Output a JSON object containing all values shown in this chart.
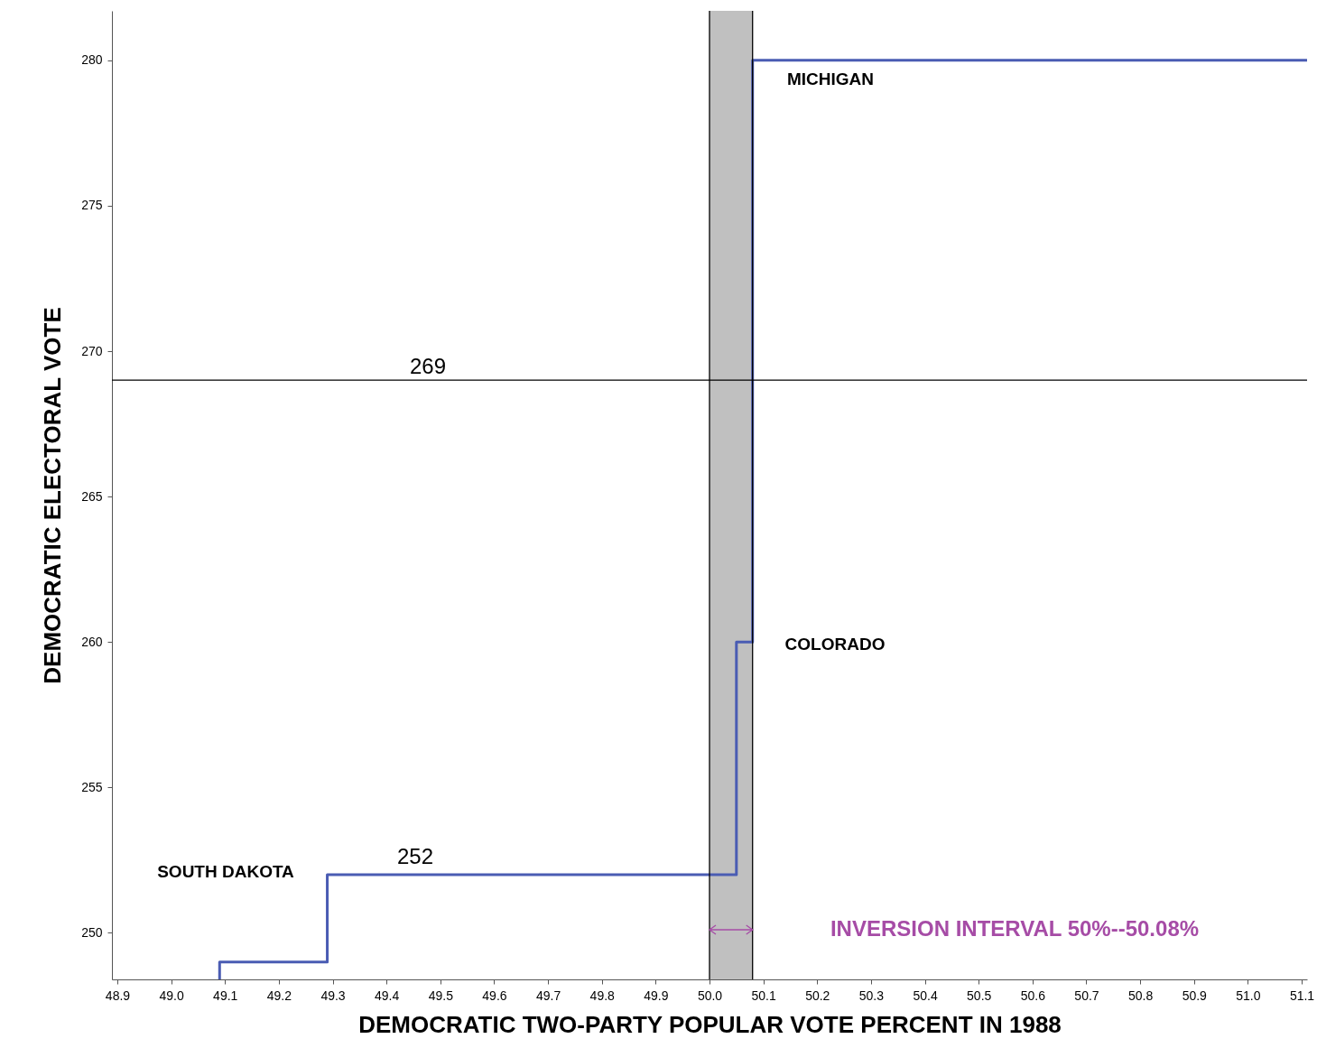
{
  "chart_data": {
    "type": "step",
    "xlabel": "DEMOCRATIC TWO-PARTY POPULAR VOTE PERCENT IN 1988",
    "ylabel": "DEMOCRATIC ELECTORAL VOTE",
    "x": [
      49.09,
      49.09,
      49.29,
      50.05,
      50.08,
      51.11
    ],
    "series": [
      {
        "color": "#4a5cb3",
        "values": [
          248.4,
          249,
          252,
          260,
          280,
          280
        ]
      }
    ],
    "xlim": [
      48.89,
      51.11
    ],
    "ylim": [
      248.4,
      281.7
    ],
    "xticks": [
      48.9,
      {
        "value": 49,
        "label": "49.0"
      },
      49.1,
      49.2,
      49.3,
      49.4,
      49.5,
      49.6,
      49.7,
      49.8,
      49.9,
      {
        "value": 50,
        "label": "50.0"
      },
      50.1,
      50.2,
      50.3,
      50.4,
      50.5,
      50.6,
      50.7,
      50.8,
      50.9,
      {
        "value": 51,
        "label": "51.0"
      },
      51.1
    ],
    "yticks": [
      250,
      255,
      260,
      265,
      270,
      275,
      280
    ],
    "grid": false,
    "line_style": "solid",
    "marker": "none",
    "bands": [
      {
        "axis": "x",
        "from": 50.0,
        "to": 50.08,
        "color": "#c0c0c0"
      }
    ],
    "ref_lines": [
      {
        "axis": "y",
        "value": 269,
        "label": "269",
        "color": "#000000"
      },
      {
        "axis": "x",
        "value": 50.0,
        "color": "#000000"
      },
      {
        "axis": "x",
        "value": 50.08,
        "color": "#000000"
      }
    ],
    "annotations": [
      "MICHIGAN",
      "COLORADO",
      "SOUTH DAKOTA",
      "252",
      "INVERSION INTERVAL 50%--50.08%"
    ]
  }
}
